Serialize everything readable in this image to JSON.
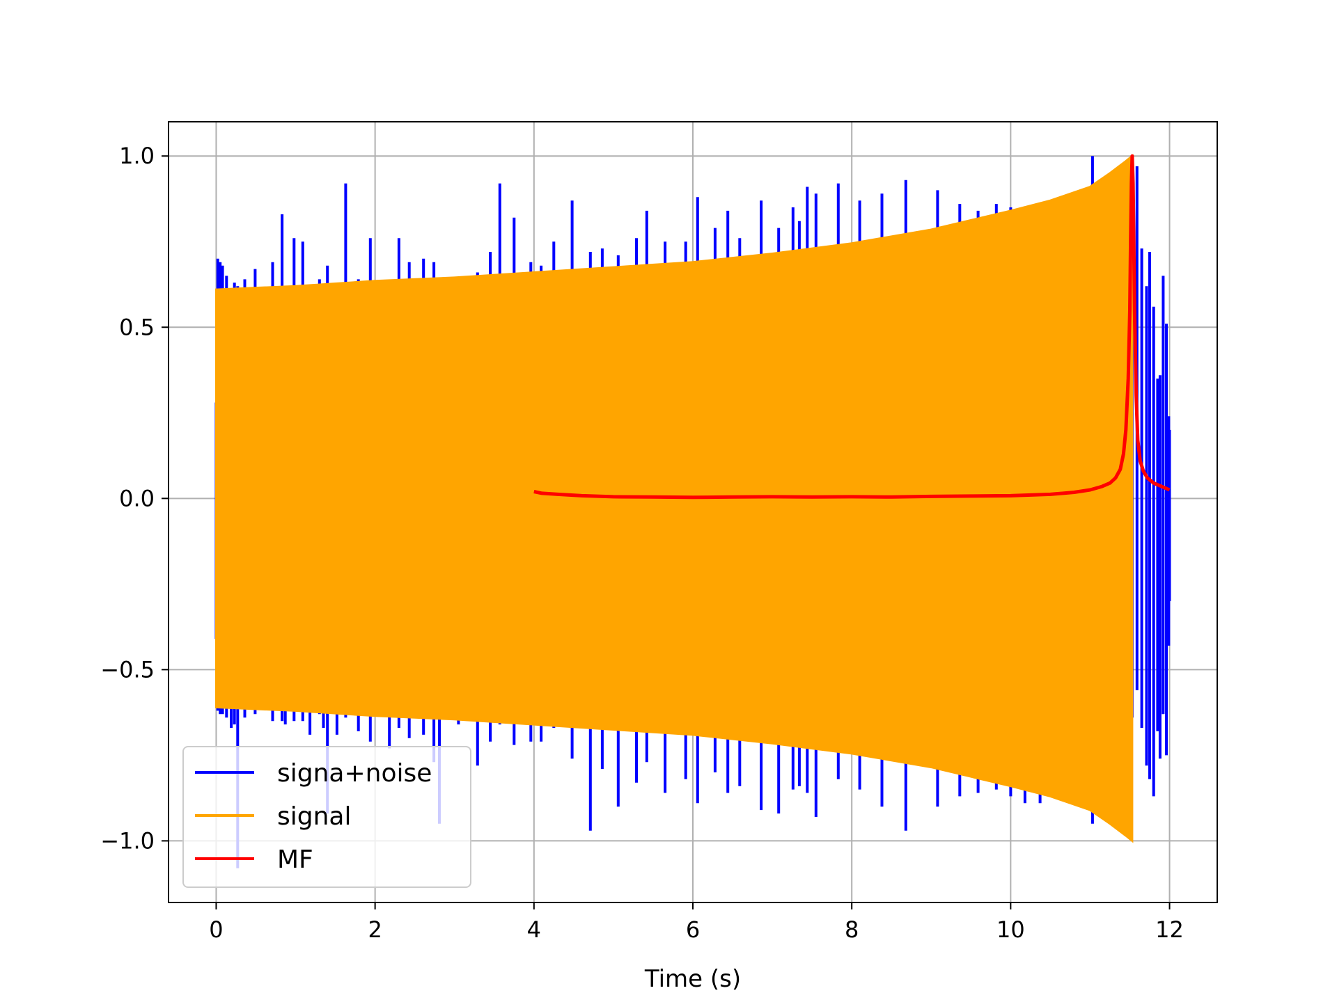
{
  "chart_data": {
    "type": "line",
    "title": "",
    "xlabel": "Time (s)",
    "ylabel": "",
    "xlim": [
      -0.6,
      12.6
    ],
    "ylim": [
      -1.18,
      1.1
    ],
    "xticks": [
      0,
      2,
      4,
      6,
      8,
      10,
      12
    ],
    "xtick_labels": [
      "0",
      "2",
      "4",
      "6",
      "8",
      "10",
      "12"
    ],
    "yticks": [
      -1.0,
      -0.5,
      0.0,
      0.5,
      1.0
    ],
    "ytick_labels": [
      "−1.0",
      "−0.5",
      "0.0",
      "0.5",
      "1.0"
    ],
    "grid": true,
    "legend_position": "lower-left",
    "series": [
      {
        "name": "signa+noise",
        "color": "#0000ff",
        "description_points": {
          "x": [
            0.0,
            0.02,
            0.05,
            0.08,
            0.13,
            0.19,
            0.23,
            0.27,
            0.36,
            0.49,
            0.71,
            0.83,
            0.87,
            0.98,
            1.09,
            1.18,
            1.3,
            1.35,
            1.4,
            1.52,
            1.63,
            1.79,
            1.94,
            2.18,
            2.3,
            2.43,
            2.61,
            2.74,
            2.81,
            3.05,
            3.29,
            3.45,
            3.57,
            3.75,
            3.96,
            4.09,
            4.25,
            4.48,
            4.71,
            4.86,
            5.06,
            5.29,
            5.42,
            5.65,
            5.91,
            6.06,
            6.28,
            6.44,
            6.59,
            6.86,
            7.08,
            7.26,
            7.34,
            7.44,
            7.55,
            7.83,
            8.1,
            8.38,
            8.68,
            9.08,
            9.36,
            9.59,
            9.82,
            10.0,
            10.18,
            10.37,
            11.03,
            11.35,
            11.41,
            11.47,
            11.53,
            11.59,
            11.65,
            11.71,
            11.75,
            11.8,
            11.85,
            11.88,
            11.92,
            11.96,
            11.99,
            12.0
          ],
          "y": [
            0.28,
            0.7,
            0.69,
            0.68,
            0.65,
            0.57,
            0.63,
            0.62,
            0.64,
            0.67,
            0.69,
            0.83,
            0.62,
            0.76,
            0.75,
            0.62,
            0.64,
            0.62,
            0.68,
            0.62,
            0.92,
            0.64,
            0.76,
            0.61,
            0.76,
            0.69,
            0.7,
            0.69,
            0.61,
            0.62,
            0.66,
            0.72,
            0.92,
            0.82,
            0.69,
            0.68,
            0.75,
            0.87,
            0.72,
            0.73,
            0.71,
            0.76,
            0.84,
            0.75,
            0.75,
            0.88,
            0.79,
            0.84,
            0.76,
            0.87,
            0.79,
            0.85,
            0.81,
            0.91,
            0.89,
            0.92,
            0.87,
            0.89,
            0.93,
            0.9,
            0.86,
            0.84,
            0.86,
            0.85,
            0.8,
            0.76,
            1.0,
            0.87,
            0.88,
            0.68,
            0.63,
            0.97,
            0.73,
            0.62,
            0.72,
            0.56,
            0.35,
            0.36,
            0.65,
            0.51,
            0.24,
            0.2
          ],
          "y_min": [
            -0.41,
            -0.62,
            -0.63,
            -0.63,
            -0.64,
            -0.67,
            -0.66,
            -1.08,
            -0.64,
            -0.63,
            -0.65,
            -0.65,
            -0.66,
            -0.65,
            -0.65,
            -0.69,
            -0.63,
            -0.67,
            -0.92,
            -0.69,
            -0.64,
            -0.68,
            -0.71,
            -0.73,
            -0.67,
            -0.7,
            -0.69,
            -0.77,
            -0.95,
            -0.66,
            -0.78,
            -0.71,
            -0.66,
            -0.72,
            -0.71,
            -0.71,
            -0.67,
            -0.76,
            -0.97,
            -0.79,
            -0.9,
            -0.83,
            -0.77,
            -0.86,
            -0.82,
            -0.89,
            -0.8,
            -0.86,
            -0.84,
            -0.91,
            -0.92,
            -0.85,
            -0.84,
            -0.86,
            -0.93,
            -0.82,
            -0.85,
            -0.9,
            -0.97,
            -0.9,
            -0.87,
            -0.86,
            -0.85,
            -0.87,
            -0.89,
            -0.89,
            -0.95,
            -0.96,
            -0.96,
            -0.83,
            -0.64,
            -0.56,
            -0.67,
            -0.78,
            -0.82,
            -0.87,
            -0.68,
            -0.76,
            -0.63,
            -0.75,
            -0.43,
            -0.3
          ]
        }
      },
      {
        "name": "signal",
        "color": "#ffa500",
        "envelope": {
          "x": [
            0,
            1,
            2,
            3,
            4,
            5,
            6,
            7,
            8,
            9,
            10,
            10.5,
            11.0,
            11.25,
            11.45,
            11.53
          ],
          "amplitude": [
            0.61,
            0.62,
            0.635,
            0.645,
            0.66,
            0.675,
            0.69,
            0.715,
            0.745,
            0.785,
            0.84,
            0.87,
            0.91,
            0.95,
            0.985,
            1.0
          ]
        }
      },
      {
        "name": "MF",
        "color": "#ff0000",
        "points": {
          "x": [
            4.0,
            4.1,
            4.3,
            4.6,
            5.0,
            5.5,
            6.0,
            6.5,
            7.0,
            7.5,
            8.0,
            8.5,
            9.0,
            9.5,
            10.0,
            10.5,
            10.8,
            11.0,
            11.15,
            11.25,
            11.32,
            11.38,
            11.42,
            11.45,
            11.48,
            11.5,
            11.51,
            11.52,
            11.53,
            11.54,
            11.55,
            11.56,
            11.58,
            11.6,
            11.63,
            11.67,
            11.72,
            11.8,
            11.9,
            12.0
          ],
          "y": [
            0.02,
            0.015,
            0.012,
            0.008,
            0.005,
            0.004,
            0.003,
            0.004,
            0.005,
            0.004,
            0.005,
            0.004,
            0.006,
            0.007,
            0.008,
            0.012,
            0.018,
            0.025,
            0.035,
            0.045,
            0.06,
            0.085,
            0.13,
            0.2,
            0.35,
            0.55,
            0.75,
            0.92,
            1.0,
            0.92,
            0.75,
            0.55,
            0.3,
            0.17,
            0.11,
            0.08,
            0.06,
            0.045,
            0.035,
            0.025
          ]
        }
      }
    ]
  }
}
